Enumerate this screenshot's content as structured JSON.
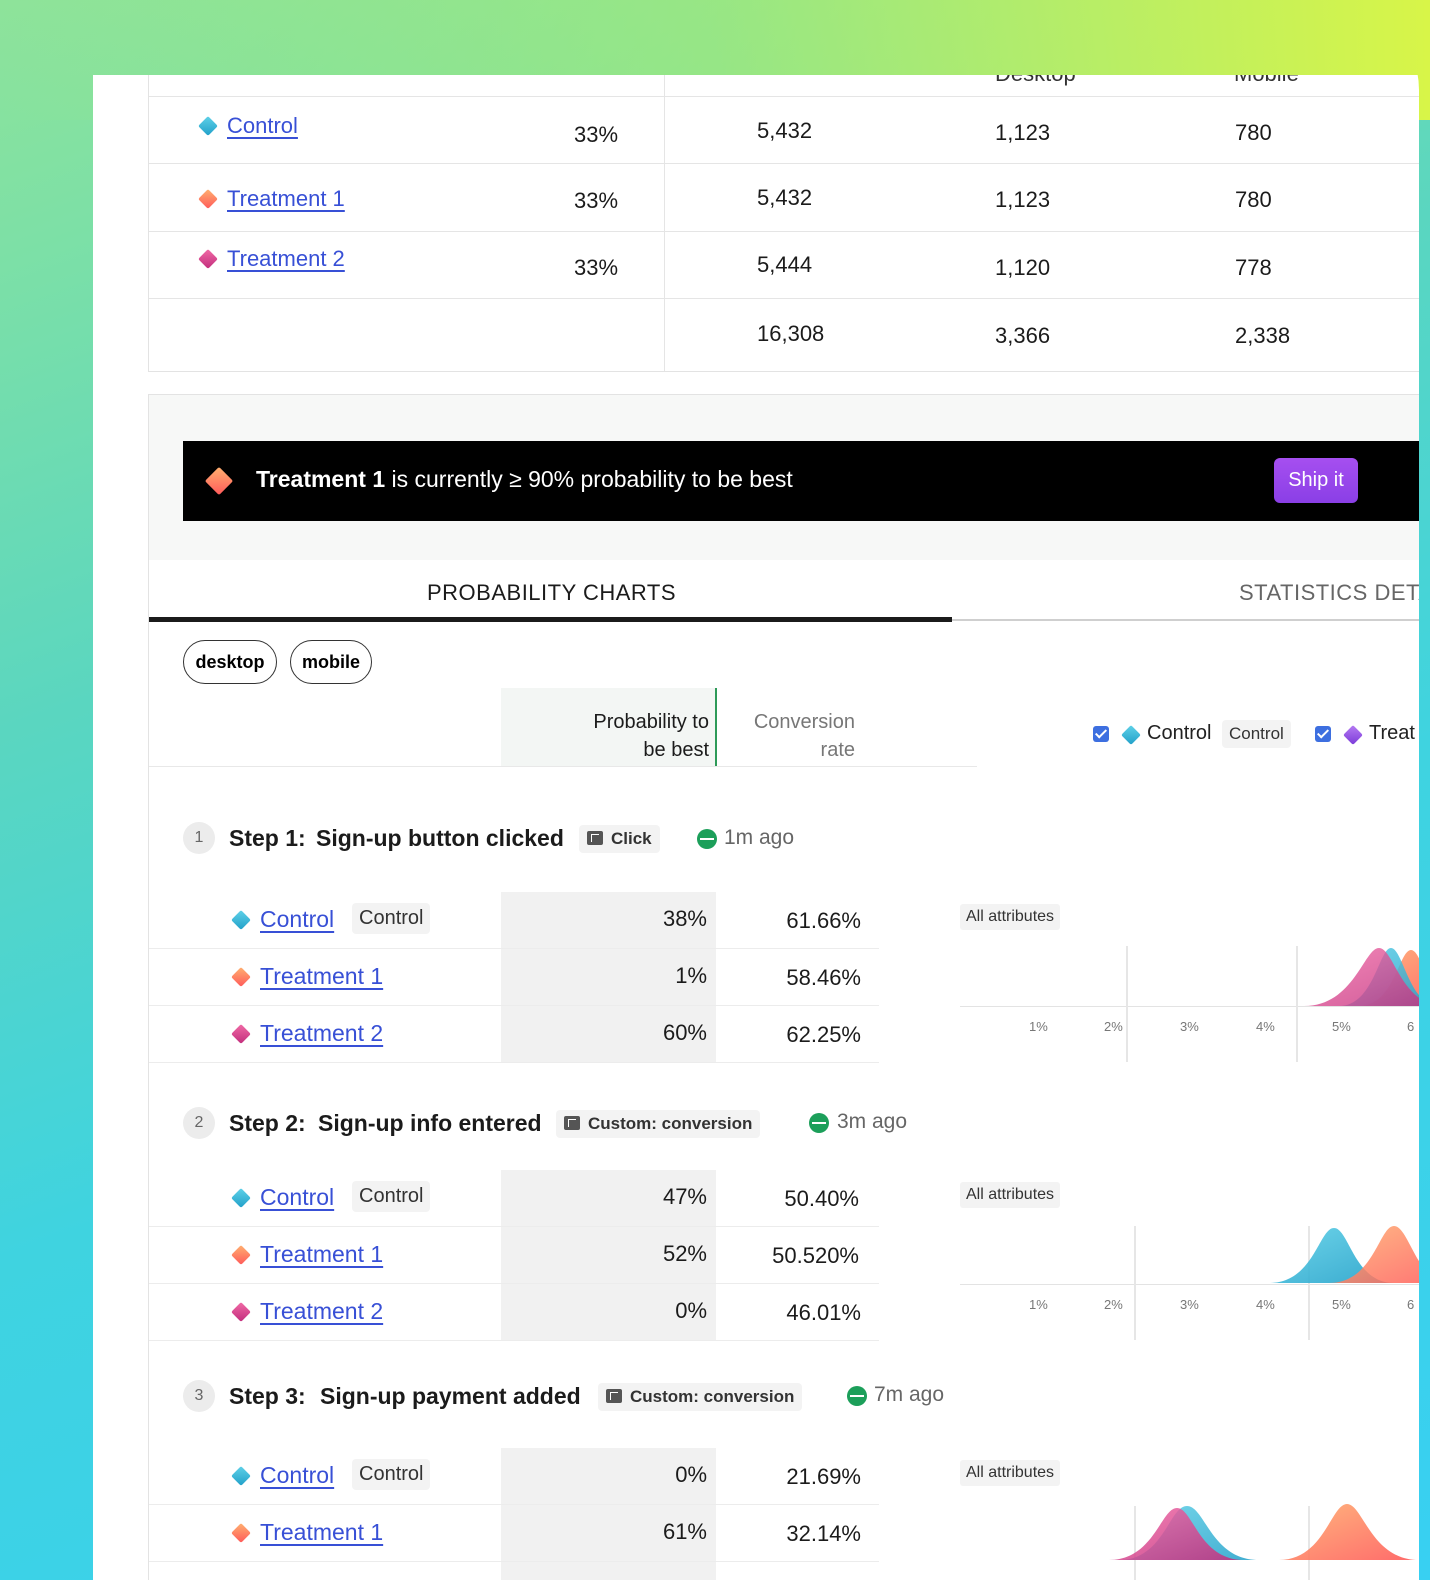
{
  "top_table": {
    "header_cut": [
      "Desktop",
      "Mobile"
    ],
    "rows": [
      {
        "name": "Control",
        "allocation": "33%",
        "total": "5,432",
        "desktop": "1,123",
        "mobile": "780"
      },
      {
        "name": "Treatment 1",
        "allocation": "33%",
        "total": "5,432",
        "desktop": "1,123",
        "mobile": "780"
      },
      {
        "name": "Treatment 2",
        "allocation": "33%",
        "total": "5,444",
        "desktop": "1,120",
        "mobile": "778"
      }
    ],
    "totals": {
      "total": "16,308",
      "desktop": "3,366",
      "mobile": "2,338"
    }
  },
  "banner": {
    "variant": "Treatment 1",
    "message": "is currently ≥ 90% probability to be best",
    "ship_label": "Ship it"
  },
  "tabs": [
    {
      "label": "PROBABILITY CHARTS",
      "active": true
    },
    {
      "label": "STATISTICS DETA",
      "active": false
    }
  ],
  "segments": [
    "desktop",
    "mobile"
  ],
  "columns": {
    "probability_line1": "Probability to",
    "probability_line2": "be best",
    "conversion_line1": "Conversion",
    "conversion_line2": "rate"
  },
  "legend": [
    {
      "name": "Control",
      "tag": "Control",
      "checked": true,
      "color": "#21a0c9"
    },
    {
      "name": "Treat",
      "checked": true,
      "color": "#7b3bd9"
    }
  ],
  "control_tag": "Control",
  "attributes_label": "All attributes",
  "chart_ticks": [
    "1%",
    "2%",
    "3%",
    "4%",
    "5%",
    "6"
  ],
  "steps": [
    {
      "number": "1",
      "label": "Step 1:",
      "title": "Sign-up button clicked",
      "event": "Click",
      "ago": "1m ago",
      "variants": [
        {
          "name": "Control",
          "probability": "38%",
          "conversion": "61.66%"
        },
        {
          "name": "Treatment 1",
          "probability": "1%",
          "conversion": "58.46%"
        },
        {
          "name": "Treatment 2",
          "probability": "60%",
          "conversion": "62.25%"
        }
      ]
    },
    {
      "number": "2",
      "label": "Step 2:",
      "title": "Sign-up info entered",
      "event": "Custom: conversion",
      "ago": "3m ago",
      "variants": [
        {
          "name": "Control",
          "probability": "47%",
          "conversion": "50.40%"
        },
        {
          "name": "Treatment 1",
          "probability": "52%",
          "conversion": "50.520%"
        },
        {
          "name": "Treatment 2",
          "probability": "0%",
          "conversion": "46.01%"
        }
      ]
    },
    {
      "number": "3",
      "label": "Step 3:",
      "title": "Sign-up payment added",
      "event": "Custom: conversion",
      "ago": "7m ago",
      "variants": [
        {
          "name": "Control",
          "probability": "0%",
          "conversion": "21.69%"
        },
        {
          "name": "Treatment 1",
          "probability": "61%",
          "conversion": "32.14%"
        }
      ]
    }
  ],
  "colors": {
    "control": "#21a0c9",
    "treatment_1": "#ff6a4d",
    "treatment_2": "#c22d7c",
    "accent_button": "#9446ec",
    "link": "#3850d6",
    "live_green": "#1c9f5a"
  }
}
